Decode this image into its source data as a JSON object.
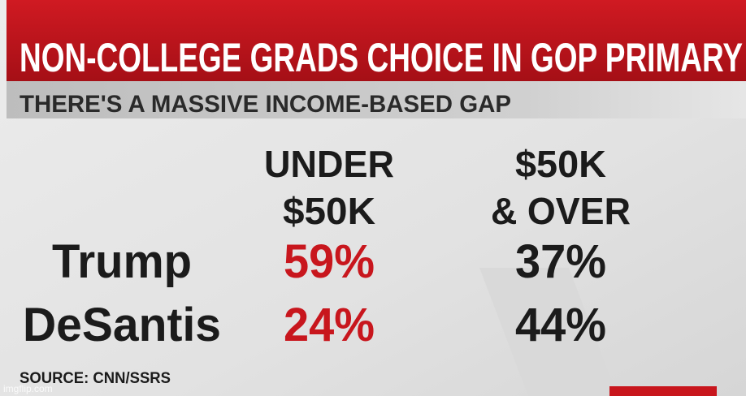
{
  "header": {
    "title": "NON-COLLEGE GRADS CHOICE IN GOP PRIMARY",
    "subtitle": "THERE'S A MASSIVE INCOME-BASED GAP"
  },
  "table": {
    "columns": [
      [
        "UNDER",
        "$50K"
      ],
      [
        "$50K",
        "& OVER"
      ]
    ],
    "rows": [
      {
        "label": "Trump",
        "values": [
          "59%",
          "37%"
        ]
      },
      {
        "label": "DeSantis",
        "values": [
          "24%",
          "44%"
        ]
      }
    ]
  },
  "source": "SOURCE: CNN/SSRS",
  "watermark": "imgflip.com"
}
